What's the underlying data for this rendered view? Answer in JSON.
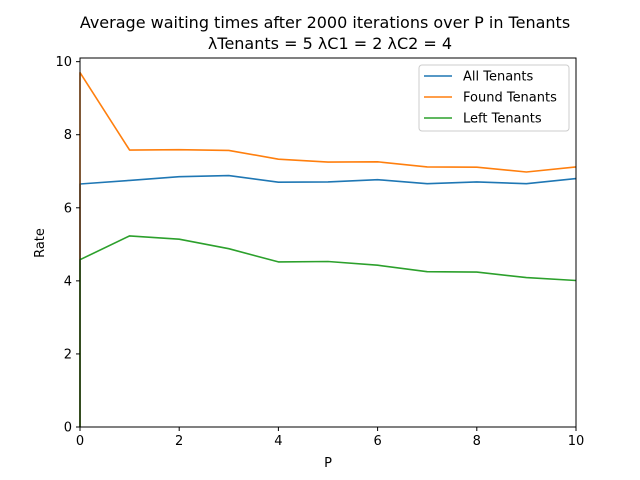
{
  "chart_data": {
    "type": "line",
    "title": "Average waiting times after 2000 iterations over P in Tenants",
    "subtitle": "λTenants = 5 λC1 = 2 λC2 = 4",
    "xlabel": "P",
    "ylabel": "Rate",
    "xlim": [
      0,
      10
    ],
    "ylim": [
      0,
      10.1
    ],
    "xticks": [
      "0",
      "2",
      "4",
      "6",
      "8",
      "10"
    ],
    "yticks": [
      "0",
      "2",
      "4",
      "6",
      "8",
      "10"
    ],
    "grid": false,
    "legend_position": "top-right",
    "x": [
      0,
      1,
      2,
      3,
      4,
      5,
      6,
      7,
      8,
      9,
      10
    ],
    "series": [
      {
        "name": "All Tenants",
        "color": "#1f77b4",
        "values": [
          6.65,
          6.75,
          6.85,
          6.88,
          6.7,
          6.71,
          6.77,
          6.66,
          6.71,
          6.66,
          6.8
        ],
        "start_from_zero": true
      },
      {
        "name": "Found Tenants",
        "color": "#ff7f0e",
        "values": [
          9.7,
          7.58,
          7.59,
          7.57,
          7.33,
          7.25,
          7.26,
          7.12,
          7.11,
          6.98,
          7.12
        ],
        "start_from_zero": true
      },
      {
        "name": "Left Tenants",
        "color": "#2ca02c",
        "values": [
          4.58,
          5.23,
          5.14,
          4.88,
          4.52,
          4.53,
          4.43,
          4.25,
          4.24,
          4.09,
          4.01
        ],
        "start_from_zero": true
      }
    ]
  }
}
